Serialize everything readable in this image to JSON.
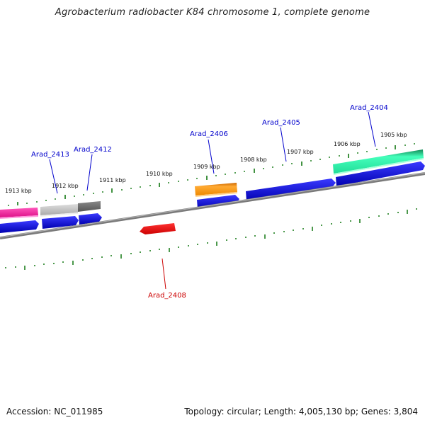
{
  "title": "Agrobacterium radiobacter K84 chromosome 1, complete genome",
  "footer": {
    "accession": "Accession: NC_011985",
    "summary": "Topology: circular; Length: 4,005,130 bp; Genes: 3,804"
  },
  "kbp_labels": [
    "1913 kbp",
    "1912 kbp",
    "1911 kbp",
    "1910 kbp",
    "1909 kbp",
    "1908 kbp",
    "1907 kbp",
    "1906 kbp",
    "1905 kbp"
  ],
  "gene_labels": {
    "arad_2413": "Arad_2413",
    "arad_2412": "Arad_2412",
    "arad_2406": "Arad_2406",
    "arad_2405": "Arad_2405",
    "arad_2404": "Arad_2404",
    "arad_2408": "Arad_2408"
  },
  "colors": {
    "forward_label": "#0000cc",
    "reverse_label": "#cc0000",
    "cds": "#0000dd",
    "tick": "#117711",
    "backbone": "#808080"
  }
}
